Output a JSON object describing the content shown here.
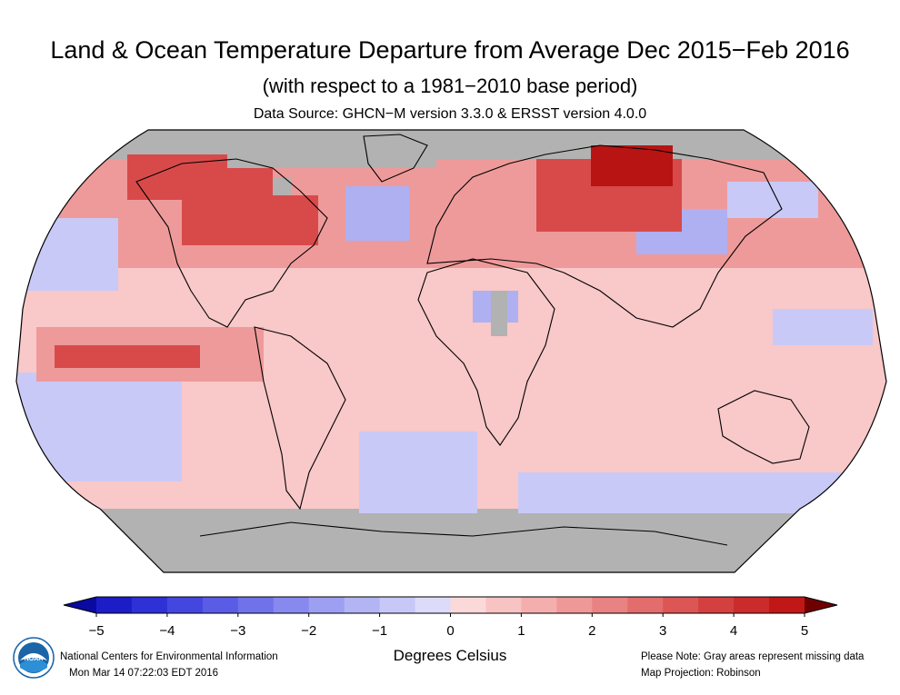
{
  "title": "Land & Ocean Temperature Departure from Average Dec 2015−Feb 2016",
  "subtitle": "(with respect to a 1981−2010 base period)",
  "data_source": "Data Source: GHCN−M version 3.3.0 & ERSST version 4.0.0",
  "colorbar": {
    "ticks": [
      "−5",
      "−4",
      "−3",
      "−2",
      "−1",
      "0",
      "1",
      "2",
      "3",
      "4",
      "5"
    ],
    "unit_label": "Degrees Celsius",
    "colors": [
      "#1d1dc8",
      "#2e31d6",
      "#4447df",
      "#5a5ce6",
      "#7072ea",
      "#8789ee",
      "#9d9ff2",
      "#b2b4f4",
      "#c7c8f7",
      "#dcdcfa",
      "#fbd9d9",
      "#f8c3c3",
      "#f4aeae",
      "#ef9898",
      "#e98282",
      "#e36c6c",
      "#dc5656",
      "#d44040",
      "#cb2b2b",
      "#c21717"
    ],
    "arrow_low": "#0a0aa0",
    "arrow_high": "#6e0000"
  },
  "map": {
    "missing_color": "#b2b2b2",
    "base_color": "#f9c8c8",
    "warm_color": "#ee9a9a",
    "hot_color": "#d84a4a",
    "extreme_color": "#b81414",
    "cool_color": "#c9c9f7",
    "cooler_color": "#aeb0f2"
  },
  "footer": {
    "org": "National Centers for Environmental Information",
    "timestamp": "Mon Mar 14 07:22:03 EDT 2016",
    "note": "Please Note: Gray areas represent missing data",
    "projection": "Map Projection: Robinson"
  },
  "logo_text": "NOAA"
}
